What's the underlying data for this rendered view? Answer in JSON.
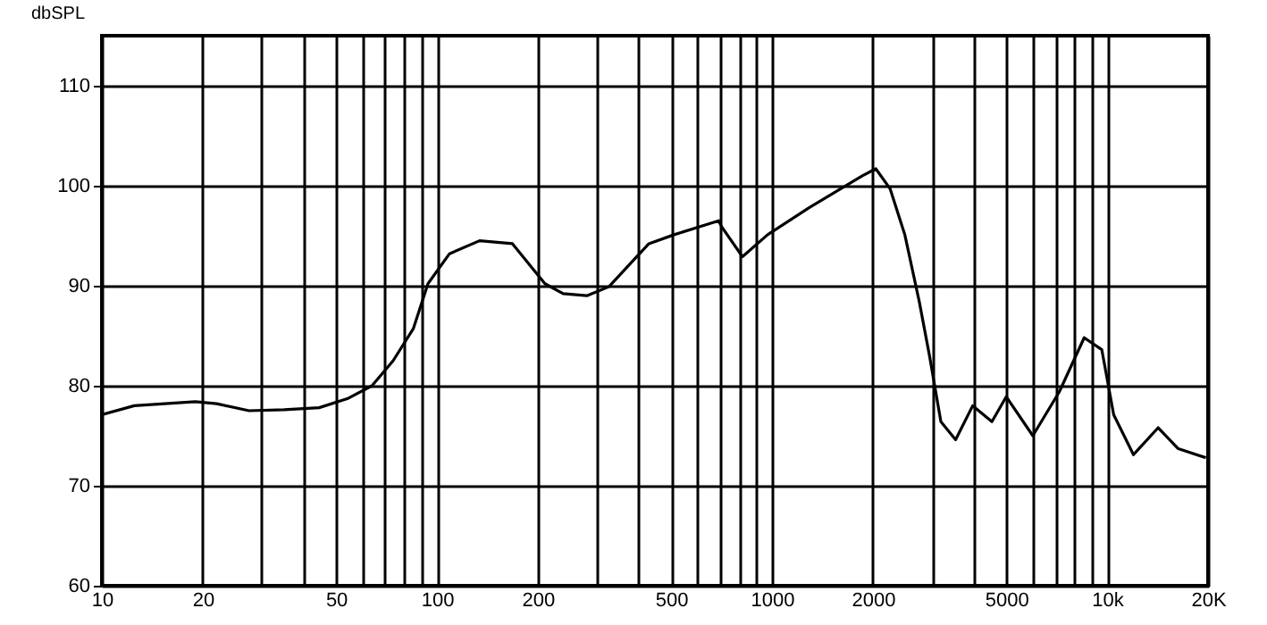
{
  "chart_data": {
    "type": "line",
    "ylabel": "dbSPL",
    "log": "x",
    "grid": true,
    "xlim": [
      10,
      20000
    ],
    "ylim": [
      60,
      115
    ],
    "xticks": [
      10,
      20,
      {
        "value": 30,
        "label": null
      },
      {
        "value": 40,
        "label": null
      },
      50,
      {
        "value": 60,
        "label": null
      },
      {
        "value": 70,
        "label": null
      },
      {
        "value": 80,
        "label": null
      },
      {
        "value": 90,
        "label": null
      },
      100,
      200,
      {
        "value": 300,
        "label": null
      },
      {
        "value": 400,
        "label": null
      },
      500,
      {
        "value": 600,
        "label": null
      },
      {
        "value": 700,
        "label": null
      },
      {
        "value": 800,
        "label": null
      },
      {
        "value": 900,
        "label": null
      },
      1000,
      2000,
      {
        "value": 3000,
        "label": null
      },
      {
        "value": 4000,
        "label": null
      },
      5000,
      {
        "value": 6000,
        "label": null
      },
      {
        "value": 7000,
        "label": null
      },
      {
        "value": 8000,
        "label": null
      },
      {
        "value": 9000,
        "label": null
      },
      {
        "value": 10000,
        "label": "10k"
      },
      {
        "value": 20000,
        "label": "20K"
      }
    ],
    "yticks": [
      60,
      70,
      80,
      90,
      100,
      110
    ],
    "x": [
      10,
      12.5,
      19,
      22,
      27.5,
      35,
      44.5,
      54,
      64,
      74,
      85,
      94,
      109,
      134,
      168,
      210,
      238,
      280,
      326,
      387,
      429,
      510,
      693,
      707,
      816,
      970,
      1290,
      1860,
      2040,
      2250,
      2490,
      2750,
      2950,
      3190,
      3530,
      3970,
      4530,
      5000,
      6000,
      7200,
      8540,
      9640,
      10460,
      11980,
      14200,
      16300,
      19700
    ],
    "series": [
      {
        "color": "#000000",
        "values": [
          77.1,
          78.0,
          78.4,
          78.2,
          77.5,
          77.6,
          77.8,
          78.7,
          80.0,
          82.5,
          85.7,
          90.2,
          93.2,
          94.5,
          94.2,
          90.2,
          89.2,
          89.0,
          89.9,
          92.6,
          94.2,
          95.1,
          96.5,
          95.9,
          92.9,
          95.1,
          97.8,
          101.0,
          101.7,
          99.7,
          95.1,
          88.4,
          83.0,
          76.4,
          74.6,
          78.0,
          76.4,
          78.9,
          75.0,
          79.4,
          84.8,
          83.6,
          77.1,
          73.1,
          75.8,
          73.7,
          72.8
        ]
      }
    ],
    "marker": "none",
    "line_style": "solid"
  }
}
